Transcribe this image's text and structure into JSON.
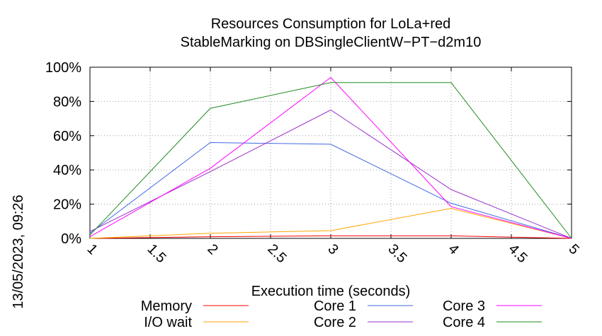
{
  "chart_data": {
    "type": "line",
    "title": [
      "Resources Consumption for LoLa+red",
      "StableMarking on DBSingleClientW−PT−d2m10"
    ],
    "xlabel": "Execution time (seconds)",
    "ylabel": "",
    "xlim": [
      1,
      5
    ],
    "ylim": [
      0,
      100
    ],
    "xticks": [
      1,
      1.5,
      2,
      2.5,
      3,
      3.5,
      4,
      4.5,
      5
    ],
    "xtick_labels": [
      "1",
      "1.5",
      "2",
      "2.5",
      "3",
      "3.5",
      "4",
      "4.5",
      "5"
    ],
    "yticks": [
      0,
      20,
      40,
      60,
      80,
      100
    ],
    "ytick_labels": [
      "0%",
      "20%",
      "40%",
      "60%",
      "80%",
      "100%"
    ],
    "grid": true,
    "legend_position": "bottom",
    "series": [
      {
        "name": "Memory",
        "color": "#ff0000",
        "x": [
          1,
          2,
          3,
          4,
          5
        ],
        "values": [
          0,
          1,
          1.5,
          1.5,
          0
        ]
      },
      {
        "name": "I/O wait",
        "color": "#ffa500",
        "x": [
          1,
          2,
          3,
          4,
          5
        ],
        "values": [
          0,
          3,
          4.5,
          17.5,
          0
        ]
      },
      {
        "name": "Core 1",
        "color": "#4169e1",
        "x": [
          1,
          2,
          3,
          4,
          5
        ],
        "values": [
          3,
          56,
          55,
          20.5,
          0
        ]
      },
      {
        "name": "Core 2",
        "color": "#9932cc",
        "x": [
          1,
          2,
          3,
          4,
          5
        ],
        "values": [
          4,
          39,
          75,
          28.5,
          0
        ]
      },
      {
        "name": "Core 3",
        "color": "#ff00ff",
        "x": [
          1,
          2,
          3,
          4,
          5
        ],
        "values": [
          1,
          41,
          94,
          18.5,
          0
        ]
      },
      {
        "name": "Core 4",
        "color": "#228b22",
        "x": [
          1,
          2,
          3,
          4,
          5
        ],
        "values": [
          2,
          76,
          91,
          91,
          0
        ]
      }
    ]
  },
  "timestamp": "13/05/2023, 09:26"
}
